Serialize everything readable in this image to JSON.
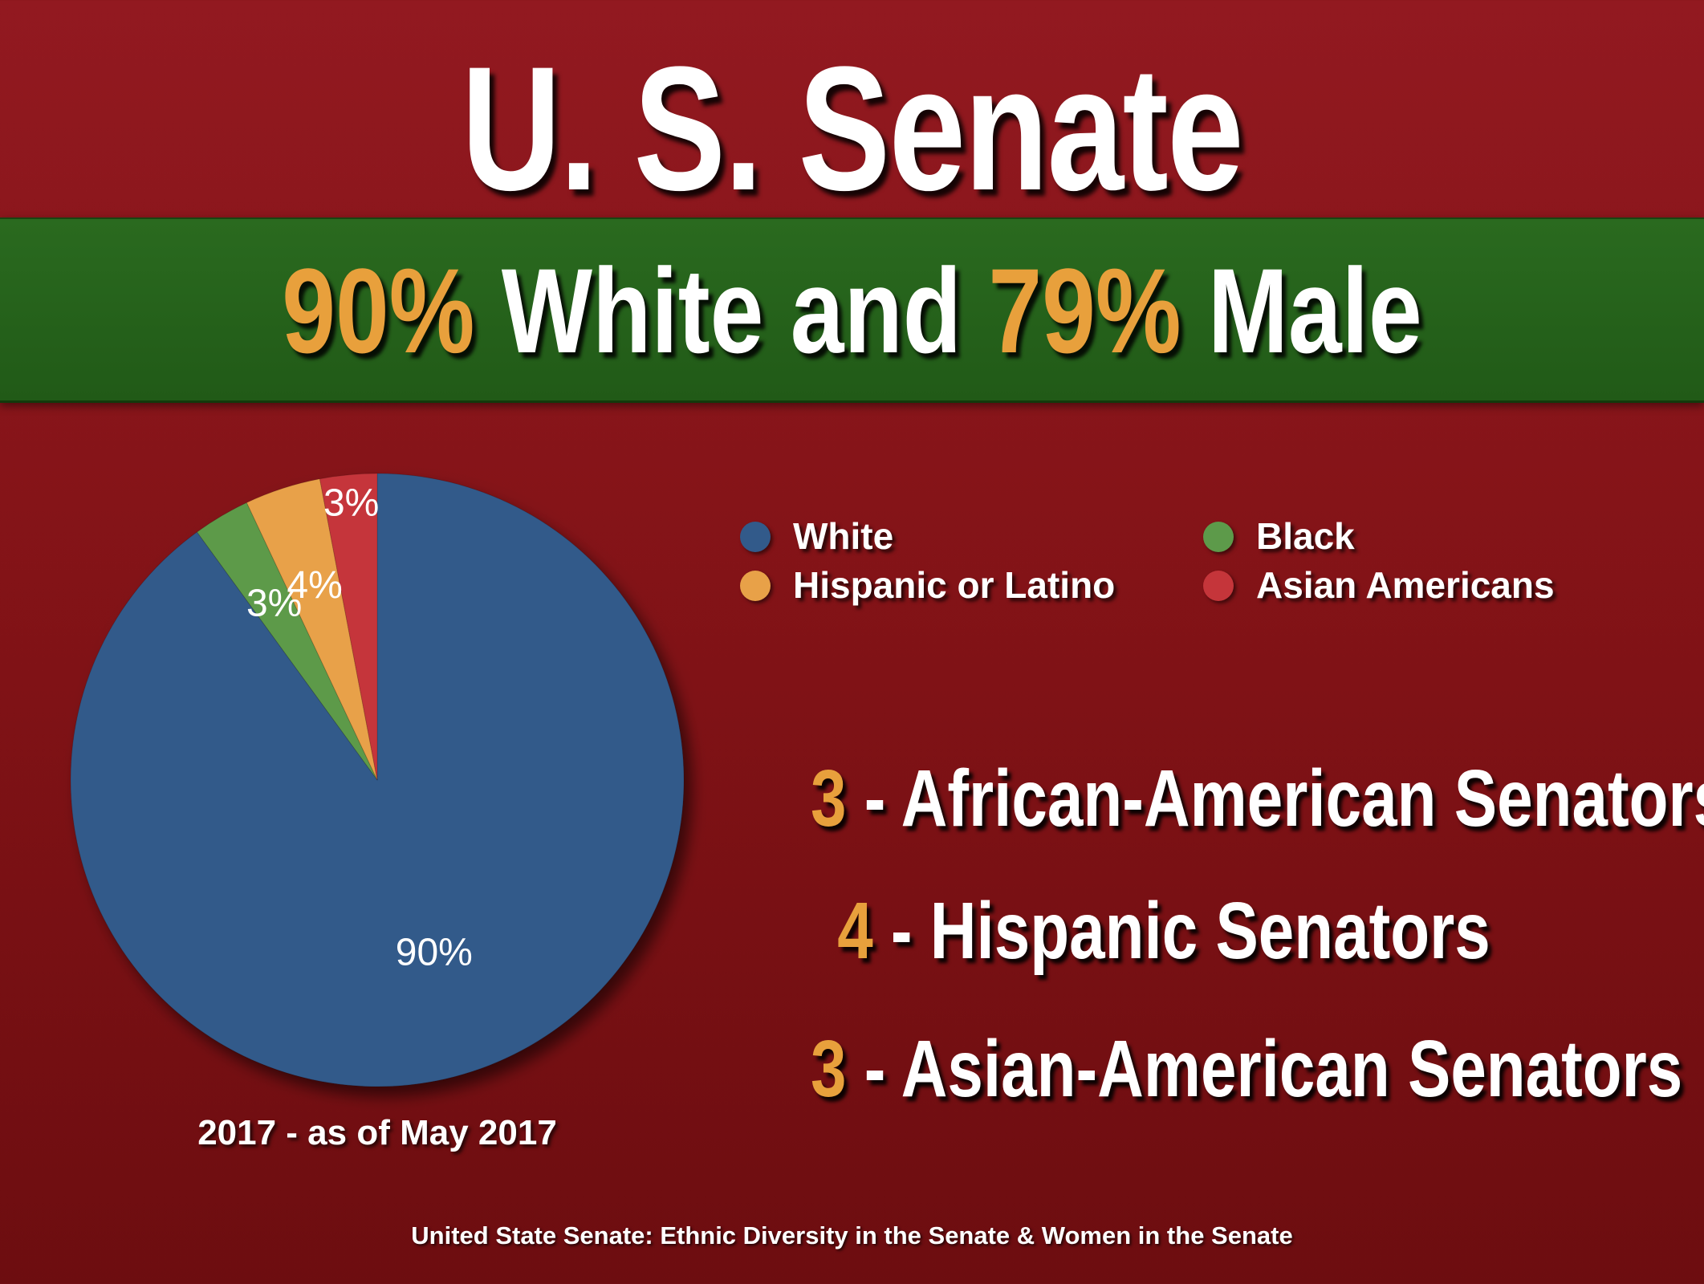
{
  "title": "U. S. Senate",
  "headline": {
    "pct1": "90%",
    "text1": " White and ",
    "pct2": "79%",
    "text2": " Male"
  },
  "chart_data": {
    "type": "pie",
    "slices": [
      {
        "label": "White",
        "value": 90,
        "value_label": "90%",
        "color": "#325a8a"
      },
      {
        "label": "Black",
        "value": 3,
        "value_label": "3%",
        "color": "#5d9a4a"
      },
      {
        "label": "Hispanic or Latino",
        "value": 4,
        "value_label": "4%",
        "color": "#e8a148"
      },
      {
        "label": "Asian Americans",
        "value": 3,
        "value_label": "3%",
        "color": "#c5353a"
      }
    ],
    "legend": [
      {
        "label": "White",
        "color": "#325a8a"
      },
      {
        "label": "Black",
        "color": "#5d9a4a"
      },
      {
        "label": "Hispanic or Latino",
        "color": "#e8a148"
      },
      {
        "label": "Asian Americans",
        "color": "#c5353a"
      }
    ],
    "caption": "2017 - as of May 2017"
  },
  "stats": [
    {
      "number": "3",
      "text": " - African-American Senators"
    },
    {
      "number": "4",
      "text": " - Hispanic Senators"
    },
    {
      "number": "3",
      "text": " - Asian-American Senators"
    }
  ],
  "source": "United State Senate:  Ethnic Diversity in the Senate & Women in the Senate",
  "colors": {
    "accent": "#e8a03c",
    "background": "#831317",
    "band": "#2a6a1f"
  }
}
